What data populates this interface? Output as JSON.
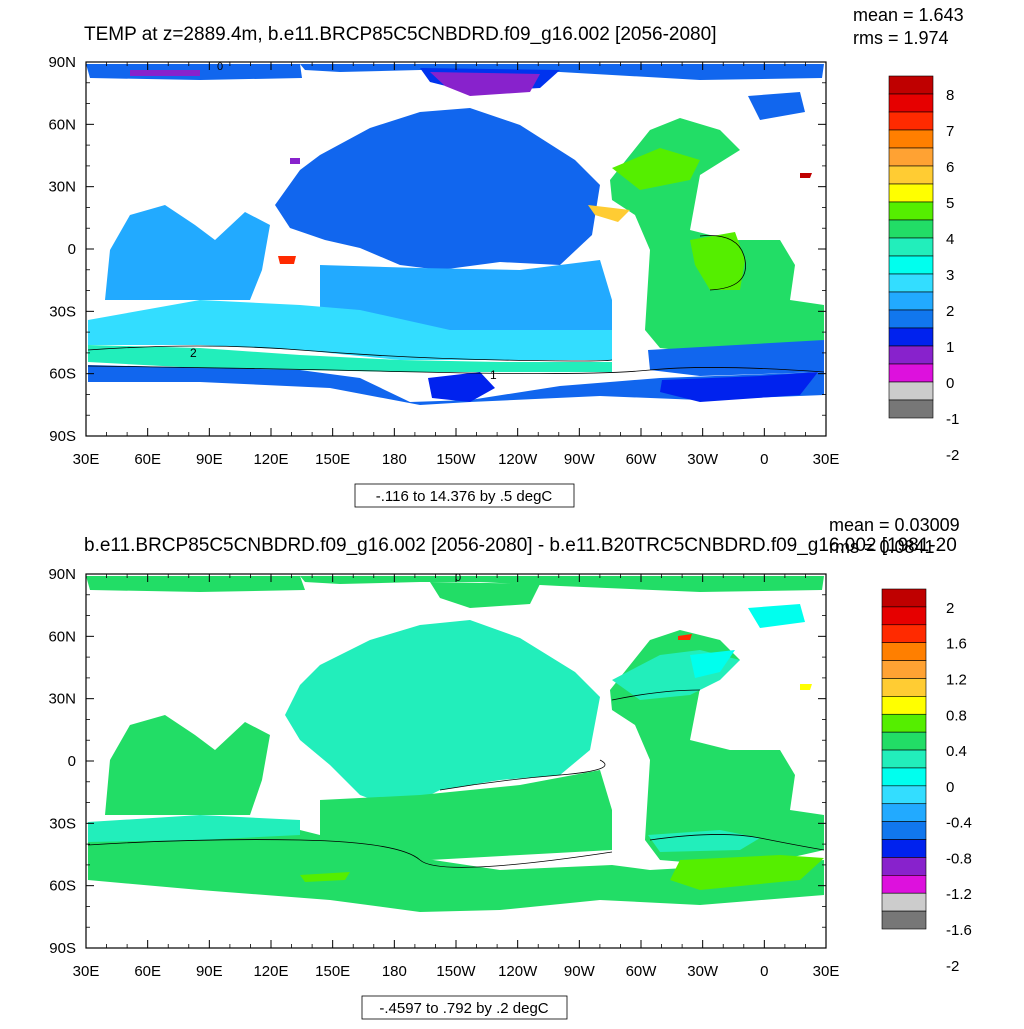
{
  "panels": [
    {
      "title": "TEMP at z=2889.4m, b.e11.BRCP85C5CNBDRD.f09_g16.002 [2056-2080]",
      "mean": "mean = 1.643",
      "rms": "rms = 1.974",
      "contour_info": "-.116 to 14.376 by .5 degC",
      "contour_labels": [
        "0",
        "2",
        "1"
      ],
      "lat_ticks": [
        "90N",
        "60N",
        "30N",
        "0",
        "30S",
        "60S",
        "90S"
      ],
      "lon_ticks": [
        "30E",
        "60E",
        "90E",
        "120E",
        "150E",
        "180",
        "150W",
        "120W",
        "90W",
        "60W",
        "30W",
        "0",
        "30E"
      ],
      "colorbar_labels": [
        "8",
        "7",
        "6",
        "5",
        "4",
        "3",
        "2",
        "1",
        "0",
        "-1",
        "-2"
      ],
      "colorbar_colors": [
        "#bf0000",
        "#e60000",
        "#ff2a00",
        "#ff7f00",
        "#ffa233",
        "#ffcc33",
        "#ffff00",
        "#55ee00",
        "#22dd66",
        "#22eebb",
        "#00ffee",
        "#33ddff",
        "#22aaff",
        "#1177ee",
        "#0022ee",
        "#8822cc",
        "#dd11dd",
        "#cccccc",
        "#777777"
      ]
    },
    {
      "title": "b.e11.BRCP85C5CNBDRD.f09_g16.002 [2056-2080] - b.e11.B20TRC5CNBDRD.f09_g16.002 [1981-20",
      "mean": "mean = 0.03009",
      "rms": "rms = 0.0841",
      "contour_info": "-.4597 to .792 by .2 degC",
      "contour_labels": [
        "0"
      ],
      "lat_ticks": [
        "90N",
        "60N",
        "30N",
        "0",
        "30S",
        "60S",
        "90S"
      ],
      "lon_ticks": [
        "30E",
        "60E",
        "90E",
        "120E",
        "150E",
        "180",
        "150W",
        "120W",
        "90W",
        "60W",
        "30W",
        "0",
        "30E"
      ],
      "colorbar_labels": [
        "2",
        "1.6",
        "1.2",
        "0.8",
        "0.4",
        "0",
        "-0.4",
        "-0.8",
        "-1.2",
        "-1.6",
        "-2"
      ],
      "colorbar_colors": [
        "#bf0000",
        "#e60000",
        "#ff2a00",
        "#ff7f00",
        "#ffa233",
        "#ffcc33",
        "#ffff00",
        "#55ee00",
        "#22dd66",
        "#22eebb",
        "#00ffee",
        "#33ddff",
        "#22aaff",
        "#1177ee",
        "#0022ee",
        "#8822cc",
        "#dd11dd",
        "#cccccc",
        "#777777"
      ]
    }
  ]
}
